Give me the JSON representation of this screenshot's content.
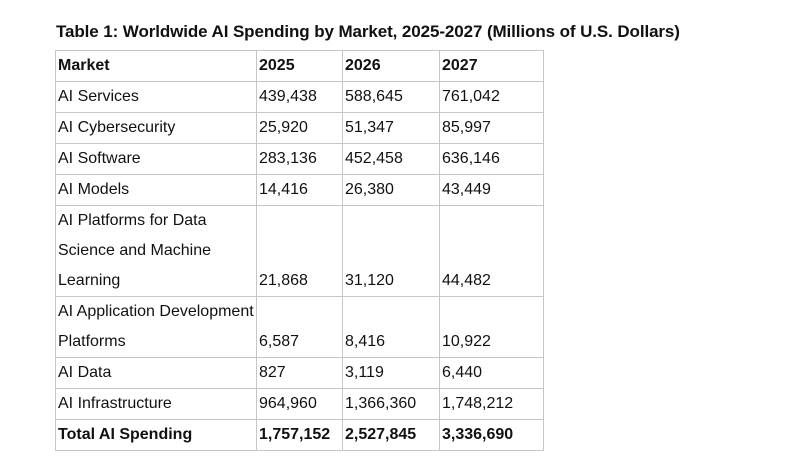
{
  "caption": "Table 1: Worldwide AI Spending by Market, 2025-2027 (Millions of U.S. Dollars)",
  "table": {
    "headers": [
      "Market",
      "2025",
      "2026",
      "2027"
    ],
    "rows": [
      {
        "market": "AI Services",
        "y2025": "439,438",
        "y2026": "588,645",
        "y2027": "761,042"
      },
      {
        "market": "AI Cybersecurity",
        "y2025": "25,920",
        "y2026": "51,347",
        "y2027": "85,997"
      },
      {
        "market": "AI Software",
        "y2025": "283,136",
        "y2026": "452,458",
        "y2027": "636,146"
      },
      {
        "market": "AI Models",
        "y2025": "14,416",
        "y2026": "26,380",
        "y2027": "43,449"
      },
      {
        "market": "AI Platforms for Data Science and Machine Learning",
        "y2025": "21,868",
        "y2026": "31,120",
        "y2027": "44,482"
      },
      {
        "market": "AI Application Development Platforms",
        "y2025": "6,587",
        "y2026": "8,416",
        "y2027": "10,922"
      },
      {
        "market": "AI Data",
        "y2025": "827",
        "y2026": "3,119",
        "y2027": "6,440"
      },
      {
        "market": "AI Infrastructure",
        "y2025": "964,960",
        "y2026": "1,366,360",
        "y2027": "1,748,212"
      }
    ],
    "total": {
      "market": "Total AI Spending",
      "y2025": "1,757,152",
      "y2026": "2,527,845",
      "y2027": "3,336,690"
    }
  }
}
